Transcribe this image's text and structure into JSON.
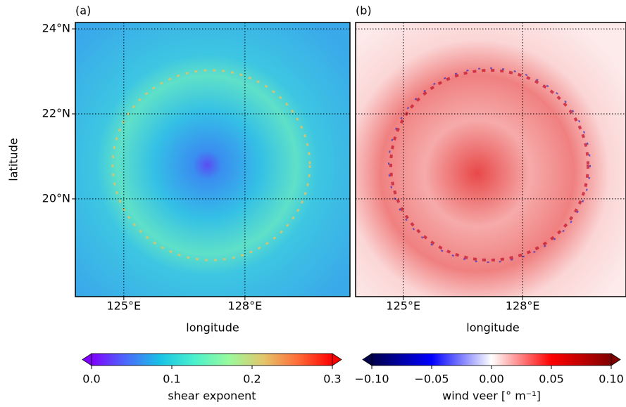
{
  "chart_data": [
    {
      "type": "map",
      "panel_label": "(a)",
      "xlabel": "longitude",
      "ylabel": "latitude",
      "xlim": [
        123.8,
        130.6
      ],
      "ylim": [
        17.7,
        24.15
      ],
      "xticks": [
        {
          "value": 125,
          "label": "125°E"
        },
        {
          "value": 128,
          "label": "128°E"
        }
      ],
      "yticks": [
        {
          "value": 20,
          "label": "20°N"
        },
        {
          "value": 22,
          "label": "22°N"
        },
        {
          "value": 24,
          "label": "24°N"
        }
      ],
      "grid": true,
      "colorbar": {
        "label": "shear exponent",
        "lim": [
          0,
          0.3
        ],
        "colors": [
          "#8000ff",
          "#4a6afb",
          "#19c2e6",
          "#4bf2cc",
          "#99fa9c",
          "#e4c66b",
          "#ff6c37",
          "#ff0000"
        ],
        "ticks": [
          {
            "value": 0,
            "label": "0.0"
          },
          0.1,
          0.2,
          0.3
        ]
      }
    },
    {
      "type": "map",
      "panel_label": "(b)",
      "xlabel": "longitude",
      "xlim": [
        123.8,
        130.6
      ],
      "ylim": [
        17.7,
        24.15
      ],
      "xticks": [
        {
          "value": 125,
          "label": "125°E"
        },
        {
          "value": 128,
          "label": "128°E"
        }
      ],
      "yticks": [
        20,
        22,
        24
      ],
      "ytick_labels": false,
      "grid": true,
      "colorbar": {
        "label": "wind veer [° m⁻¹]",
        "lim": [
          -0.1,
          0.1
        ],
        "colors": [
          "#00004c",
          "#0000ff",
          "#ffffff",
          "#ff0000",
          "#800000"
        ],
        "ticks": [
          {
            "value": -0.1,
            "label": "−0.10"
          },
          {
            "value": -0.05,
            "label": "−0.05"
          },
          {
            "value": 0,
            "label": "0.00"
          },
          0.05,
          {
            "value": 0.1,
            "label": "0.10"
          }
        ]
      }
    }
  ]
}
